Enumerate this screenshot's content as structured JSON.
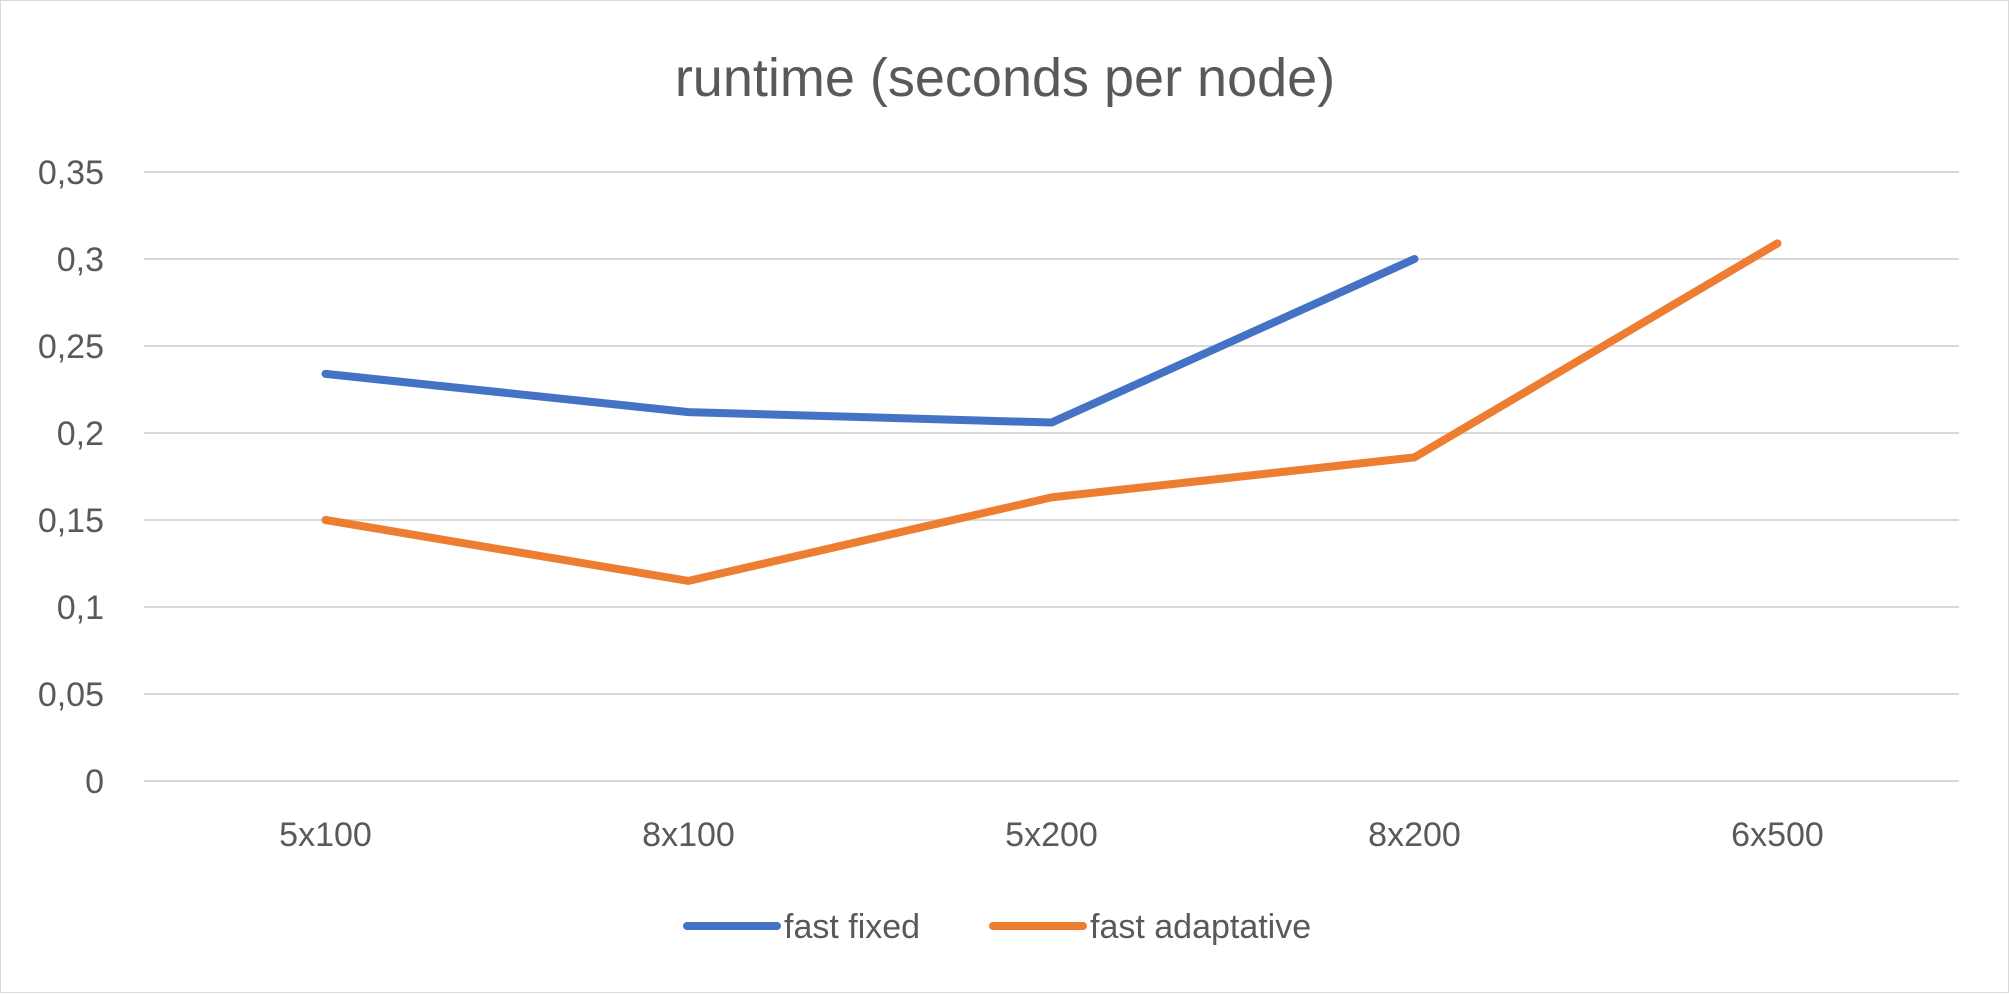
{
  "chart_data": {
    "type": "line",
    "title": "runtime (seconds per node)",
    "xlabel": "",
    "ylabel": "",
    "categories": [
      "5x100",
      "8x100",
      "5x200",
      "8x200",
      "6x500"
    ],
    "ylim": [
      0,
      0.35
    ],
    "yticks": [
      0,
      0.05,
      0.1,
      0.15,
      0.2,
      0.25,
      0.3,
      0.35
    ],
    "ytick_labels": [
      "0",
      "0,05",
      "0,1",
      "0,15",
      "0,2",
      "0,25",
      "0,3",
      "0,35"
    ],
    "grid": true,
    "legend_position": "bottom",
    "series": [
      {
        "name": "fast fixed",
        "color": "#4472c4",
        "values": [
          0.234,
          0.212,
          0.206,
          0.3,
          null
        ]
      },
      {
        "name": "fast adaptative",
        "color": "#ed7d31",
        "values": [
          0.15,
          0.115,
          0.163,
          0.186,
          0.309
        ]
      }
    ]
  }
}
